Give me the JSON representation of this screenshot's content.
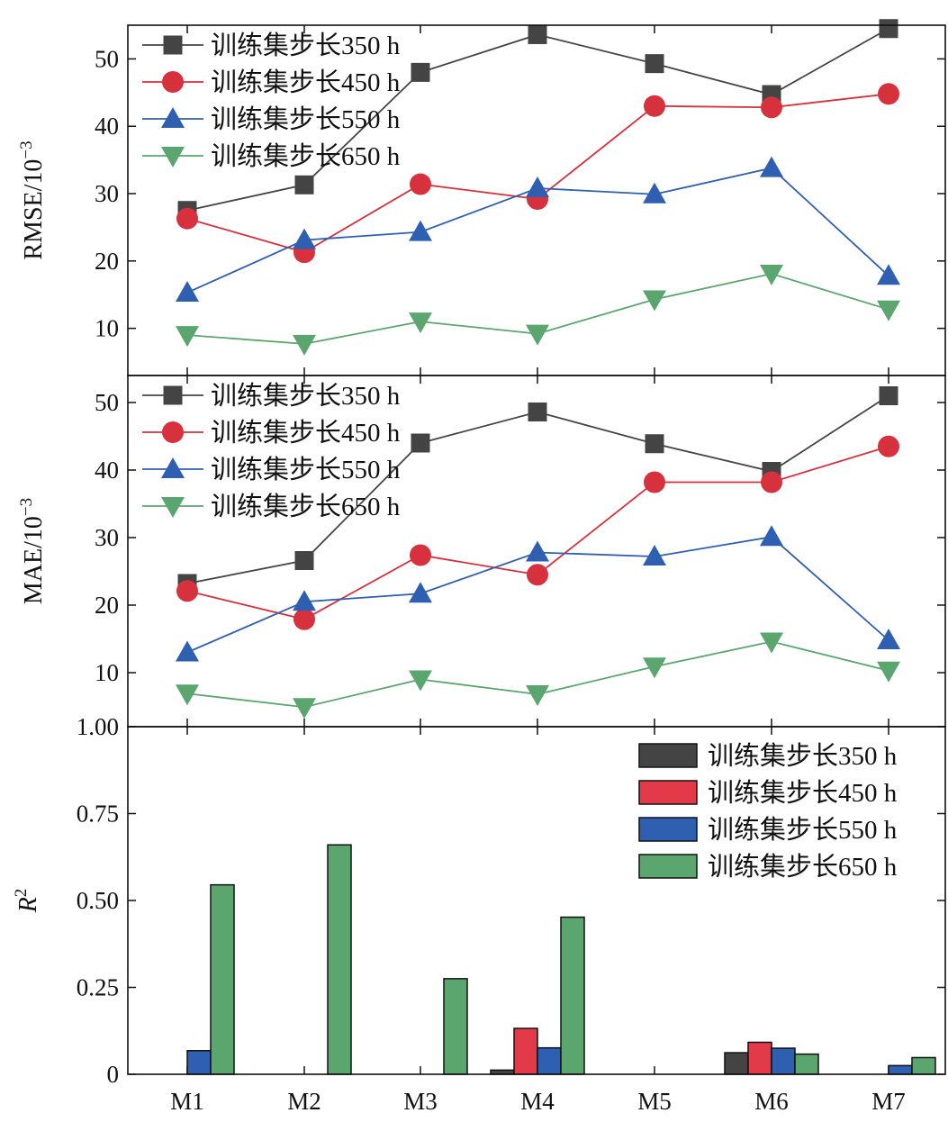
{
  "chart_data": [
    {
      "type": "line",
      "panel": "RMSE",
      "ylabel": "RMSE/10",
      "ylabel_sup": "−3",
      "ylim": [
        3,
        55
      ],
      "yticks": [
        10,
        20,
        30,
        40,
        50
      ],
      "categories": [
        "M1",
        "M2",
        "M3",
        "M4",
        "M5",
        "M6",
        "M7"
      ],
      "legend_position": "top-left",
      "series": [
        {
          "name": "训练集步长350 h",
          "marker": "square",
          "color": "#444444",
          "values": [
            27.5,
            31.3,
            48.0,
            53.6,
            49.3,
            44.7,
            54.5
          ]
        },
        {
          "name": "训练集步长450 h",
          "marker": "circle",
          "color": "#d6313d",
          "values": [
            26.3,
            21.3,
            31.4,
            29.2,
            43.0,
            42.8,
            44.8
          ]
        },
        {
          "name": "训练集步长550 h",
          "marker": "triangle-up",
          "color": "#2f5fb0",
          "values": [
            15.3,
            23.1,
            24.3,
            30.8,
            29.9,
            33.8,
            17.8
          ]
        },
        {
          "name": "训练集步长650 h",
          "marker": "triangle-down",
          "color": "#5aa66e",
          "values": [
            9.0,
            7.7,
            11.0,
            9.2,
            14.3,
            18.1,
            12.8
          ]
        }
      ]
    },
    {
      "type": "line",
      "panel": "MAE",
      "ylabel": "MAE/10",
      "ylabel_sup": "−3",
      "ylim": [
        2,
        54
      ],
      "yticks": [
        10,
        20,
        30,
        40,
        50
      ],
      "categories": [
        "M1",
        "M2",
        "M3",
        "M4",
        "M5",
        "M6",
        "M7"
      ],
      "legend_position": "top-left",
      "series": [
        {
          "name": "训练集步长350 h",
          "marker": "square",
          "color": "#444444",
          "values": [
            23.2,
            26.6,
            44.0,
            48.6,
            43.9,
            39.8,
            51.0
          ]
        },
        {
          "name": "训练集步长450 h",
          "marker": "circle",
          "color": "#d6313d",
          "values": [
            22.1,
            17.9,
            27.4,
            24.5,
            38.2,
            38.2,
            43.5
          ]
        },
        {
          "name": "训练集步长550 h",
          "marker": "triangle-up",
          "color": "#2f5fb0",
          "values": [
            13.0,
            20.5,
            21.7,
            27.8,
            27.2,
            30.1,
            14.8
          ]
        },
        {
          "name": "训练集步长650 h",
          "marker": "triangle-down",
          "color": "#5aa66e",
          "values": [
            6.9,
            4.9,
            9.0,
            6.8,
            10.9,
            14.6,
            10.3
          ]
        }
      ]
    },
    {
      "type": "bar",
      "panel": "R2",
      "ylabel": "R",
      "ylabel_sup": "2",
      "ylim": [
        0,
        1.0
      ],
      "yticks": [
        0,
        0.25,
        0.5,
        0.75,
        1.0
      ],
      "ytick_labels": [
        "0",
        "0.25",
        "0.50",
        "0.75",
        "1.00"
      ],
      "categories": [
        "M1",
        "M2",
        "M3",
        "M4",
        "M5",
        "M6",
        "M7"
      ],
      "legend_position": "top-right",
      "series": [
        {
          "name": "训练集步长350 h",
          "color": "#444444",
          "values": [
            0,
            0,
            0,
            0.012,
            0,
            0.062,
            0
          ]
        },
        {
          "name": "训练集步长450 h",
          "color": "#e23a49",
          "values": [
            0,
            0,
            0,
            0.132,
            0,
            0.092,
            0
          ]
        },
        {
          "name": "训练集步长550 h",
          "color": "#2f5fb0",
          "values": [
            0.068,
            0,
            0,
            0.076,
            0,
            0.075,
            0.025
          ]
        },
        {
          "name": "训练集步长650 h",
          "color": "#5aa66e",
          "values": [
            0.545,
            0.66,
            0.275,
            0.452,
            0,
            0.058,
            0.048
          ]
        }
      ]
    }
  ]
}
